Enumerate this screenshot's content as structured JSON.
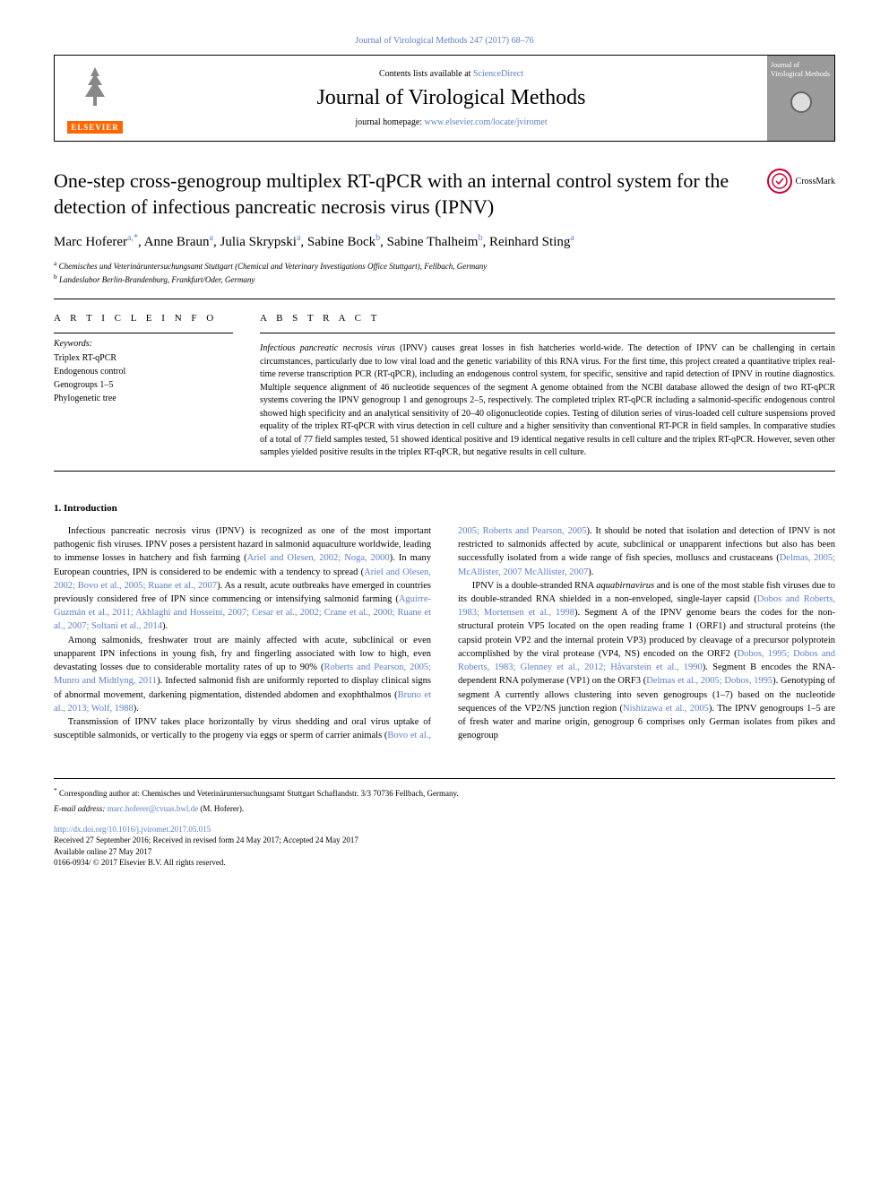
{
  "header": {
    "top_link": "Journal of Virological Methods 247 (2017) 68–76",
    "contents_text": "Contents lists available at ",
    "contents_link": "ScienceDirect",
    "journal_name": "Journal of Virological Methods",
    "homepage_label": "journal homepage: ",
    "homepage_url": "www.elsevier.com/locate/jviromet",
    "elsevier_label": "ELSEVIER",
    "cover_text": "Journal of Virological Methods"
  },
  "article": {
    "title": "One-step cross-genogroup multiplex RT-qPCR with an internal control system for the detection of infectious pancreatic necrosis virus (IPNV)",
    "crossmark_label": "CrossMark",
    "authors_html": "Marc Hoferer<sup>a,*</sup>, Anne Braun<sup>a</sup>, Julia Skrypski<sup>a</sup>, Sabine Bock<sup>b</sup>, Sabine Thalheim<sup>b</sup>, Reinhard Sting<sup>a</sup>",
    "affiliations": [
      {
        "sup": "a",
        "text": "Chemisches und Veterinäruntersuchungsamt Stuttgart (Chemical and Veterinary Investigations Office Stuttgart), Fellbach, Germany"
      },
      {
        "sup": "b",
        "text": "Landeslabor Berlin-Brandenburg, Frankfurt/Oder, Germany"
      }
    ]
  },
  "info": {
    "label": "A R T I C L E  I N F O",
    "keywords_label": "Keywords:",
    "keywords": [
      "Triplex RT-qPCR",
      "Endogenous control",
      "Genogroups 1–5",
      "Phylogenetic tree"
    ]
  },
  "abstract": {
    "label": "A B S T R A C T",
    "text": "Infectious pancreatic necrosis virus (IPNV) causes great losses in fish hatcheries world-wide. The detection of IPNV can be challenging in certain circumstances, particularly due to low viral load and the genetic variability of this RNA virus. For the first time, this project created a quantitative triplex real-time reverse transcription PCR (RT-qPCR), including an endogenous control system, for specific, sensitive and rapid detection of IPNV in routine diagnostics. Multiple sequence alignment of 46 nucleotide sequences of the segment A genome obtained from the NCBI database allowed the design of two RT-qPCR systems covering the IPNV genogroup 1 and genogroups 2–5, respectively. The completed triplex RT-qPCR including a salmonid-specific endogenous control showed high specificity and an analytical sensitivity of 20–40 oligonucleotide copies. Testing of dilution series of virus-loaded cell culture suspensions proved equality of the triplex RT-qPCR with virus detection in cell culture and a higher sensitivity than conventional RT-PCR in field samples. In comparative studies of a total of 77 field samples tested, 51 showed identical positive and 19 identical negative results in cell culture and the triplex RT-qPCR. However, seven other samples yielded positive results in the triplex RT-qPCR, but negative results in cell culture."
  },
  "body": {
    "heading": "1. Introduction",
    "paragraphs": [
      "Infectious pancreatic necrosis virus (IPNV) is recognized as one of the most important pathogenic fish viruses. IPNV poses a persistent hazard in salmonid aquaculture worldwide, leading to immense losses in hatchery and fish farming (<span class='cite'>Ariel and Olesen, 2002; Noga, 2000</span>). In many European countries, IPN is considered to be endemic with a tendency to spread (<span class='cite'>Ariel and Olesen, 2002; Bovo et al., 2005; Ruane et al., 2007</span>). As a result, acute outbreaks have emerged in countries previously considered free of IPN since commencing or intensifying salmonid farming (<span class='cite'>Aguirre-Guzmán et al., 2011; Akhlaghi and Hosseini, 2007; Cesar et al., 2002; Crane et al., 2000; Ruane et al., 2007; Soltani et al., 2014</span>).",
      "Among salmonids, freshwater trout are mainly affected with acute, subclinical or even unapparent IPN infections in young fish, fry and fingerling associated with low to high, even devastating losses due to considerable mortality rates of up to 90% (<span class='cite'>Roberts and Pearson, 2005; Munro and Midtlyng, 2011</span>). Infected salmonid fish are uniformly reported to display clinical signs of abnormal movement, darkening pigmentation, distended abdomen and exophthalmos (<span class='cite'>Bruno et al., 2013; Wolf, 1988</span>).",
      "Transmission of IPNV takes place horizontally by virus shedding and oral virus uptake of susceptible salmonids, or vertically to the progeny via eggs or sperm of carrier animals (<span class='cite'>Bovo et al., 2005; Roberts and Pearson, 2005</span>). It should be noted that isolation and detection of IPNV is not restricted to salmonids affected by acute, subclinical or unapparent infections but also has been successfully isolated from a wide range of fish species, molluscs and crustaceans (<span class='cite'>Delmas, 2005; McAllister, 2007 McAllister, 2007</span>).",
      "IPNV is a double-stranded RNA <span class='italic'>aquabirnavirus</span> and is one of the most stable fish viruses due to its double-stranded RNA shielded in a non-enveloped, single-layer capsid (<span class='cite'>Dobos and Roberts, 1983; Mortensen et al., 1998</span>). Segment A of the IPNV genome bears the codes for the non-structural protein VP5 located on the open reading frame 1 (ORF1) and structural proteins (the capsid protein VP2 and the internal protein VP3) produced by cleavage of a precursor polyprotein accomplished by the viral protease (VP4, NS) encoded on the ORF2 (<span class='cite'>Dobos, 1995; Dobos and Roberts, 1983; Glenney et al., 2012; Håvarstein et al., 1990</span>). Segment B encodes the RNA-dependent RNA polymerase (VP1) on the ORF3 (<span class='cite'>Delmas et al., 2005; Dobos, 1995</span>). Genotyping of segment A currently allows clustering into seven genogroups (1–7) based on the nucleotide sequences of the VP2/NS junction region (<span class='cite'>Nishizawa et al., 2005</span>). The IPNV genogroups 1–5 are of fresh water and marine origin, genogroup 6 comprises only German isolates from pikes and genogroup"
    ]
  },
  "footer": {
    "corr_marker": "*",
    "corr_text": "Corresponding author at: Chemisches und Veterinäruntersuchungsamt Stuttgart Schaflandstr. 3/3 70736 Fellbach, Germany.",
    "email_label": "E-mail address: ",
    "email": "marc.hoferer@cvuas.bwl.de",
    "email_suffix": " (M. Hoferer).",
    "doi": "http://dx.doi.org/10.1016/j.jviromet.2017.05.015",
    "received": "Received 27 September 2016; Received in revised form 24 May 2017; Accepted 24 May 2017",
    "available": "Available online 27 May 2017",
    "copyright": "0166-0934/ © 2017 Elsevier B.V. All rights reserved."
  },
  "colors": {
    "link": "#5b7fc7",
    "elsevier_orange": "#ff6600",
    "crossmark_red": "#c03"
  }
}
